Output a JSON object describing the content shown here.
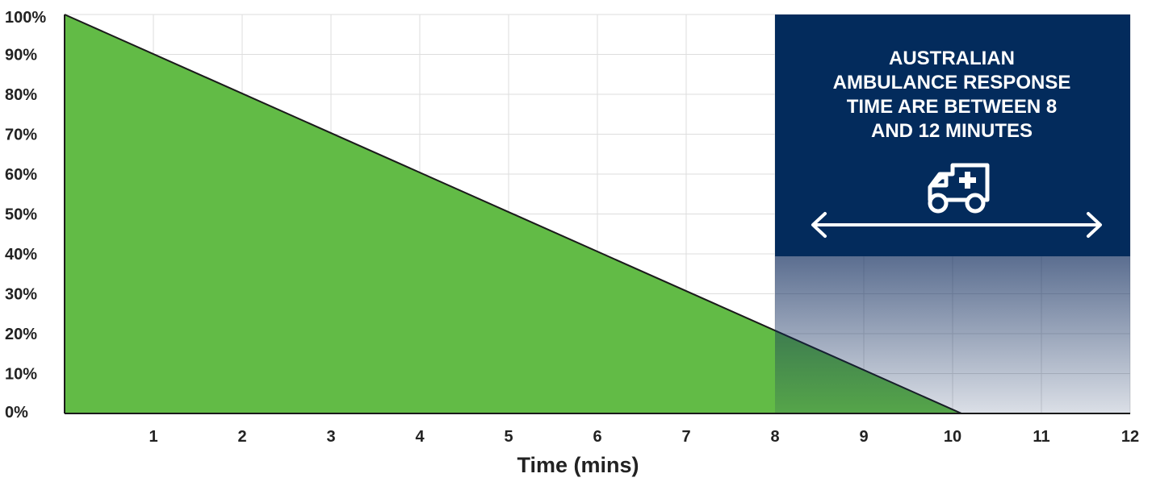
{
  "chart_data": {
    "type": "area",
    "x": [
      0,
      10.1
    ],
    "y": [
      100,
      0
    ],
    "xlabel": "Time (mins)",
    "ylabel": "",
    "xlim": [
      0,
      12
    ],
    "ylim": [
      0,
      100
    ],
    "x_ticks": [
      "1",
      "2",
      "3",
      "4",
      "5",
      "6",
      "7",
      "8",
      "9",
      "10",
      "11",
      "12"
    ],
    "y_ticks": [
      "0%",
      "10%",
      "20%",
      "30%",
      "40%",
      "50%",
      "60%",
      "70%",
      "80%",
      "90%",
      "100%"
    ],
    "grid": true,
    "fill_color": "#62bb46",
    "shaded_region": {
      "x_start": 8,
      "x_end": 12,
      "color": "#0e2a5c"
    },
    "annotation": {
      "lines": [
        "AUSTRALIAN",
        "AMBULANCE RESPONSE",
        "TIME ARE BETWEEN 8",
        "AND 12 MINUTES"
      ],
      "icon": "ambulance-icon",
      "arrow": "double-arrow-icon",
      "background": "#032b5c",
      "text_color": "#ffffff"
    }
  }
}
